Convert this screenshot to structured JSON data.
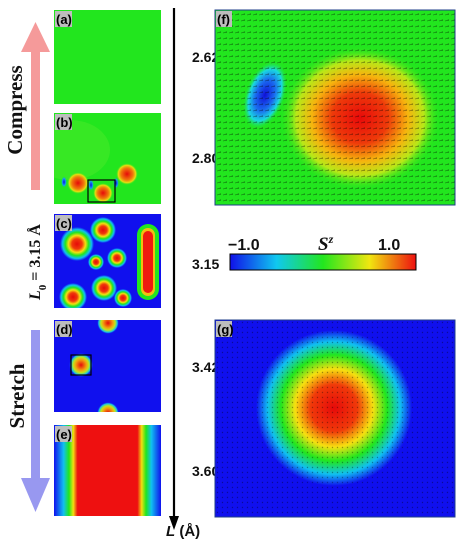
{
  "labels": {
    "compress": "Compress",
    "stretch": "Stretch",
    "l0_prefix": "L",
    "l0_sub": "0",
    "l0_suffix": " = 3.15 Å"
  },
  "panels": {
    "a": "(a)",
    "b": "(b)",
    "c": "(c)",
    "d": "(d)",
    "e": "(e)",
    "f": "(f)",
    "g": "(g)"
  },
  "axis": {
    "label_var": "L",
    "label_unit": " (Å)",
    "ticks": [
      "2.62",
      "2.80",
      "3.15",
      "3.42",
      "3.60"
    ]
  },
  "colorbar": {
    "title_base": "S",
    "title_sup": "z",
    "min_label": "−1.0",
    "max_label": "1.0"
  },
  "colors": {
    "compress_arrow": "#f59a9a",
    "stretch_arrow": "#9898f0",
    "field_green": "#22e61e",
    "field_blue": "#1111ee",
    "field_red": "#ee1111",
    "panel_border": "#1f3d8a"
  }
}
